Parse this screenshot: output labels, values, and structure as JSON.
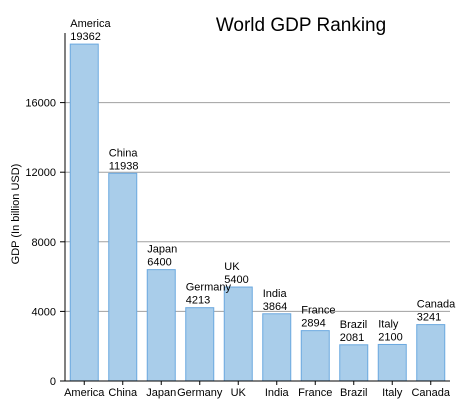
{
  "chart_data": {
    "type": "bar",
    "title": "World GDP Ranking",
    "xlabel": "",
    "ylabel": "GDP (In billion USD)",
    "categories": [
      "America",
      "China",
      "Japan",
      "Germany",
      "UK",
      "India",
      "France",
      "Brazil",
      "Italy",
      "Canada"
    ],
    "values": [
      19362,
      11938,
      6400,
      4213,
      5400,
      3864,
      2894,
      2081,
      2100,
      3241
    ],
    "ylim": [
      0,
      20000
    ],
    "yticks": [
      0,
      4000,
      8000,
      12000,
      16000
    ],
    "grid": true,
    "legend": "none",
    "colors": {
      "bar_fill": "#a9cdea",
      "bar_stroke": "#6aa8df",
      "grid": "#a0a0a0",
      "axis": "#000000"
    }
  }
}
